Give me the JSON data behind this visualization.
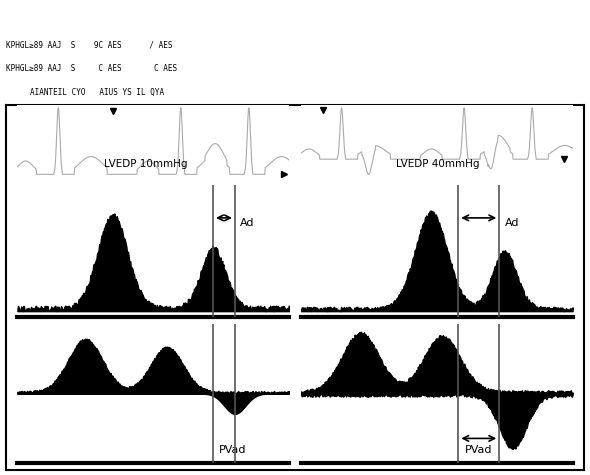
{
  "fig_width": 5.9,
  "fig_height": 4.75,
  "dpi": 100,
  "bg_color": "#ffffff",
  "panel_bg": "#f0f0f0",
  "border_color": "#000000",
  "line_color_ecg": "#888888",
  "waveform_color": "#000000",
  "label_left": "LVEDP 10mmHg",
  "label_right": "LVEDP 40mmHg",
  "label_ad": "Ad",
  "label_pvad": "PVad",
  "vline_color": "#555555",
  "arrow_color": "#000000",
  "top_header_text_left": "AIANTEIL CYO   AIUS YS IL QYA",
  "top_header_lines": [
    "KPHGL≥89 AAJ  S    9C AES      / AES",
    "KPHGL≥89 AAJ  S     C AES       C AES"
  ]
}
